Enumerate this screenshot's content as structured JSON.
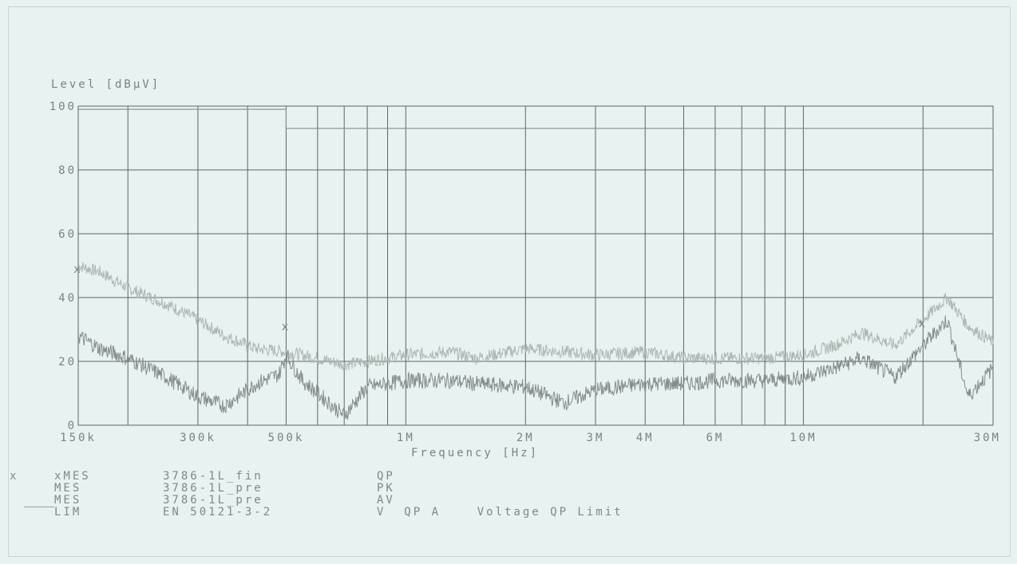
{
  "chart_data": {
    "type": "line",
    "ylabel": "Level  [dBµV]",
    "xlabel": "Frequency  [Hz]",
    "x_scale": "log",
    "xlim": [
      150000,
      30000000
    ],
    "ylim": [
      0,
      100
    ],
    "grid": true,
    "ytick_labels": [
      "0",
      "20",
      "40",
      "60",
      "80",
      "100"
    ],
    "ytick_values": [
      0,
      20,
      40,
      60,
      80,
      100
    ],
    "xtick_labels": [
      "150k",
      "300k",
      "500k",
      "1M",
      "2M",
      "3M",
      "4M",
      "6M",
      "10M",
      "30M"
    ],
    "xtick_values": [
      150000,
      300000,
      500000,
      1000000,
      2000000,
      3000000,
      4000000,
      6000000,
      10000000,
      30000000
    ],
    "series": [
      {
        "name": "3786-1L_fin QP",
        "marker": "x",
        "x": [
          150000,
          500000,
          20000000
        ],
        "y": [
          49,
          31,
          32
        ]
      },
      {
        "name": "3786-1L_pre PK",
        "x": [
          150000,
          170000,
          200000,
          250000,
          300000,
          350000,
          420000,
          500000,
          600000,
          700000,
          800000,
          1000000,
          1300000,
          1500000,
          2000000,
          2500000,
          3000000,
          4000000,
          5000000,
          6000000,
          8000000,
          10000000,
          12000000,
          14000000,
          17000000,
          20000000,
          23000000,
          26000000,
          30000000
        ],
        "y": [
          50,
          48,
          43,
          38,
          33,
          28,
          24,
          23,
          21,
          19,
          20,
          22,
          23,
          21,
          24,
          23,
          22,
          23,
          21,
          21,
          21,
          22,
          25,
          29,
          25,
          33,
          40,
          31,
          26
        ]
      },
      {
        "name": "3786-1L_pre AV",
        "x": [
          150000,
          170000,
          200000,
          250000,
          300000,
          350000,
          420000,
          480000,
          500000,
          550000,
          600000,
          700000,
          800000,
          900000,
          1000000,
          1300000,
          1500000,
          2000000,
          2500000,
          3000000,
          4000000,
          5000000,
          6000000,
          8000000,
          10000000,
          12000000,
          14000000,
          17000000,
          20000000,
          23000000,
          26000000,
          30000000
        ],
        "y": [
          28,
          24,
          21,
          15,
          9,
          6,
          13,
          16,
          22,
          14,
          10,
          3,
          12,
          13,
          14,
          14,
          13,
          12,
          7,
          11,
          13,
          13,
          14,
          14,
          15,
          18,
          21,
          15,
          25,
          33,
          9,
          18
        ]
      },
      {
        "name": "EN 50121-3-2 V QP A  Voltage QP Limit",
        "x": [
          150000,
          500000,
          500000,
          30000000
        ],
        "y": [
          99,
          99,
          93,
          93
        ]
      }
    ]
  },
  "legend": {
    "rows": [
      {
        "mark": "x",
        "name": "xMES",
        "file": "3786-1L_fin",
        "det": "QP"
      },
      {
        "mark": "",
        "name": "MES",
        "file": "3786-1L_pre",
        "det": "PK"
      },
      {
        "mark": "",
        "name": "MES",
        "file": "3786-1L_pre",
        "det": "AV"
      },
      {
        "mark": "",
        "name": "LIM",
        "file": "EN 50121-3-2",
        "det": "V  QP A    Voltage QP Limit"
      }
    ]
  },
  "colors": {
    "grid": "#5e6566",
    "pk": "#aeb6b3",
    "av": "#868c8b",
    "limit": "#8f9595",
    "text": "#7d8283"
  }
}
